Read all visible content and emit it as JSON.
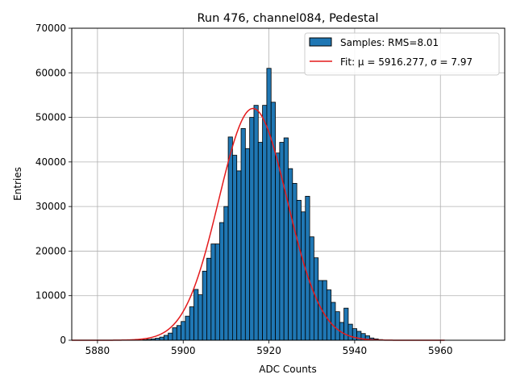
{
  "chart_data": {
    "type": "bar",
    "title": "Run 476, channel084, Pedestal",
    "xlabel": "ADC Counts",
    "ylabel": "Entries",
    "xlim": [
      5874,
      5975
    ],
    "ylim": [
      0,
      70000
    ],
    "x_ticks": [
      5880,
      5900,
      5920,
      5940,
      5960
    ],
    "y_ticks": [
      0,
      10000,
      20000,
      30000,
      40000,
      50000,
      60000,
      70000
    ],
    "grid": true,
    "legend_position": "top-right",
    "bar_color": "#1f77b4",
    "fit_color": "#e41a1c",
    "series": [
      {
        "name": "Samples: RMS=8.01",
        "kind": "histogram",
        "bins": [
          {
            "x": 5891,
            "value": 100
          },
          {
            "x": 5892,
            "value": 200
          },
          {
            "x": 5893,
            "value": 300
          },
          {
            "x": 5894,
            "value": 450
          },
          {
            "x": 5895,
            "value": 700
          },
          {
            "x": 5896,
            "value": 1100
          },
          {
            "x": 5897,
            "value": 1600
          },
          {
            "x": 5898,
            "value": 2800
          },
          {
            "x": 5899,
            "value": 3300
          },
          {
            "x": 5900,
            "value": 4200
          },
          {
            "x": 5901,
            "value": 5400
          },
          {
            "x": 5902,
            "value": 7500
          },
          {
            "x": 5903,
            "value": 11400
          },
          {
            "x": 5904,
            "value": 10200
          },
          {
            "x": 5905,
            "value": 15500
          },
          {
            "x": 5906,
            "value": 18400
          },
          {
            "x": 5907,
            "value": 21600
          },
          {
            "x": 5908,
            "value": 21600
          },
          {
            "x": 5909,
            "value": 26400
          },
          {
            "x": 5910,
            "value": 30000
          },
          {
            "x": 5911,
            "value": 45600
          },
          {
            "x": 5912,
            "value": 41500
          },
          {
            "x": 5913,
            "value": 38000
          },
          {
            "x": 5914,
            "value": 47500
          },
          {
            "x": 5915,
            "value": 43000
          },
          {
            "x": 5916,
            "value": 50000
          },
          {
            "x": 5917,
            "value": 52700
          },
          {
            "x": 5918,
            "value": 44400
          },
          {
            "x": 5919,
            "value": 52700
          },
          {
            "x": 5920,
            "value": 61000
          },
          {
            "x": 5921,
            "value": 53400
          },
          {
            "x": 5922,
            "value": 42000
          },
          {
            "x": 5923,
            "value": 44400
          },
          {
            "x": 5924,
            "value": 45400
          },
          {
            "x": 5925,
            "value": 38500
          },
          {
            "x": 5926,
            "value": 35200
          },
          {
            "x": 5927,
            "value": 31400
          },
          {
            "x": 5928,
            "value": 28800
          },
          {
            "x": 5929,
            "value": 32300
          },
          {
            "x": 5930,
            "value": 23200
          },
          {
            "x": 5931,
            "value": 18500
          },
          {
            "x": 5932,
            "value": 13400
          },
          {
            "x": 5933,
            "value": 13400
          },
          {
            "x": 5934,
            "value": 11300
          },
          {
            "x": 5935,
            "value": 8500
          },
          {
            "x": 5936,
            "value": 6400
          },
          {
            "x": 5937,
            "value": 4000
          },
          {
            "x": 5938,
            "value": 7200
          },
          {
            "x": 5939,
            "value": 3600
          },
          {
            "x": 5940,
            "value": 2600
          },
          {
            "x": 5941,
            "value": 2000
          },
          {
            "x": 5942,
            "value": 1500
          },
          {
            "x": 5943,
            "value": 1000
          },
          {
            "x": 5944,
            "value": 500
          },
          {
            "x": 5945,
            "value": 300
          },
          {
            "x": 5946,
            "value": 150
          }
        ]
      },
      {
        "name": "Fit: μ = 5916.277, σ = 7.97",
        "kind": "gaussian_fit",
        "mu": 5916.277,
        "sigma": 7.97,
        "amplitude": 52000,
        "x_range": [
          5874,
          5961
        ]
      }
    ]
  }
}
